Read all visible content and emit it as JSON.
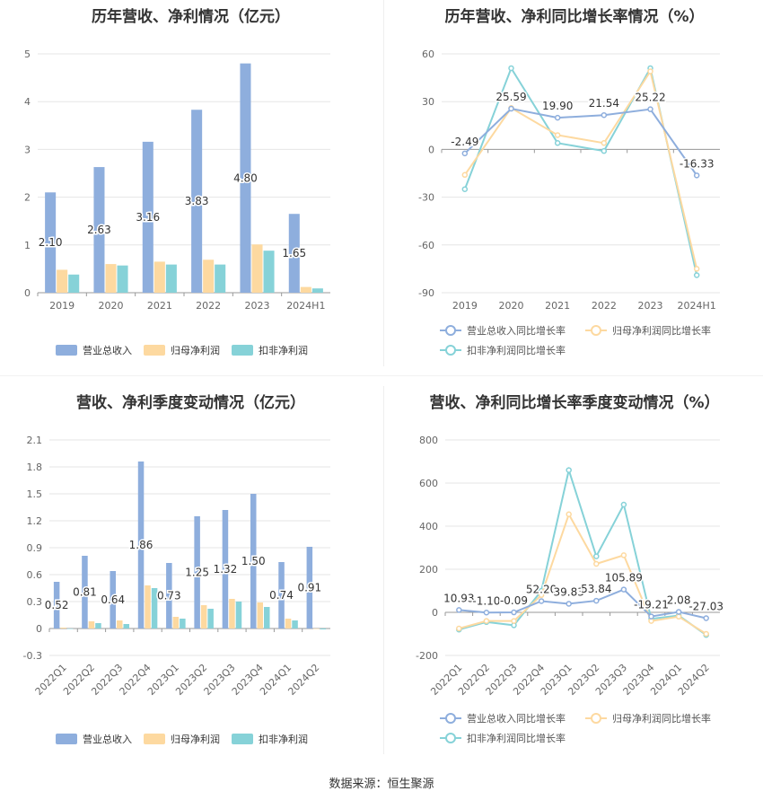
{
  "footer": {
    "source": "数据来源：恒生聚源"
  },
  "chart_data": [
    {
      "type": "bar",
      "title": "历年营收、净利情况（亿元）",
      "categories": [
        "2019",
        "2020",
        "2021",
        "2022",
        "2023",
        "2024H1"
      ],
      "ylim": [
        0,
        5
      ],
      "yticks": [
        0,
        1,
        2,
        3,
        4,
        5
      ],
      "grid": true,
      "legend_position": "bottom",
      "series": [
        {
          "name": "营业总收入",
          "color": "#8eaedd",
          "values": [
            2.1,
            2.63,
            3.16,
            3.83,
            4.8,
            1.65
          ],
          "labels": [
            "2.10",
            "2.63",
            "3.16",
            "3.83",
            "4.80",
            "1.65"
          ]
        },
        {
          "name": "归母净利润",
          "color": "#fdd9a0",
          "values": [
            0.48,
            0.6,
            0.65,
            0.69,
            1.01,
            0.12
          ]
        },
        {
          "name": "扣非净利润",
          "color": "#86d2d8",
          "values": [
            0.38,
            0.57,
            0.59,
            0.59,
            0.88,
            0.09
          ]
        }
      ]
    },
    {
      "type": "line",
      "title": "历年营收、净利同比增长率情况（%）",
      "categories": [
        "2019",
        "2020",
        "2021",
        "2022",
        "2023",
        "2024H1"
      ],
      "ylim": [
        -90,
        60
      ],
      "yticks": [
        -90,
        -60,
        -30,
        0,
        30,
        60
      ],
      "grid": true,
      "legend_position": "bottom",
      "series": [
        {
          "name": "营业总收入同比增长率",
          "color": "#8eaedd",
          "values": [
            -2.49,
            25.59,
            19.9,
            21.54,
            25.22,
            -16.33
          ],
          "labels": [
            "-2.49",
            "25.59",
            "19.90",
            "21.54",
            "25.22",
            "-16.33"
          ]
        },
        {
          "name": "归母净利润同比增长率",
          "color": "#fdd9a0",
          "values": [
            -16,
            26,
            9,
            4,
            49,
            -75
          ]
        },
        {
          "name": "扣非净利润同比增长率",
          "color": "#86d2d8",
          "values": [
            -25,
            51,
            4,
            -1,
            51,
            -79
          ]
        }
      ]
    },
    {
      "type": "bar",
      "title": "营收、净利季度变动情况（亿元）",
      "categories": [
        "2022Q1",
        "2022Q2",
        "2022Q3",
        "2022Q4",
        "2023Q1",
        "2023Q2",
        "2023Q3",
        "2023Q4",
        "2024Q1",
        "2024Q2"
      ],
      "ylim": [
        -0.3,
        2.1
      ],
      "yticks": [
        -0.3,
        0,
        0.3,
        0.6,
        0.9,
        1.2,
        1.5,
        1.8,
        2.1
      ],
      "grid": true,
      "legend_position": "bottom",
      "series": [
        {
          "name": "营业总收入",
          "color": "#8eaedd",
          "values": [
            0.52,
            0.81,
            0.64,
            1.86,
            0.73,
            1.25,
            1.32,
            1.5,
            0.74,
            0.91
          ],
          "labels": [
            "0.52",
            "0.81",
            "0.64",
            "1.86",
            "0.73",
            "1.25",
            "1.32",
            "1.50",
            "0.74",
            "0.91"
          ]
        },
        {
          "name": "归母净利润",
          "color": "#fdd9a0",
          "values": [
            0.01,
            0.08,
            0.09,
            0.48,
            0.13,
            0.26,
            0.33,
            0.29,
            0.11,
            0.0
          ]
        },
        {
          "name": "扣非净利润",
          "color": "#86d2d8",
          "values": [
            0.0,
            0.06,
            0.05,
            0.45,
            0.11,
            0.22,
            0.3,
            0.24,
            0.09,
            -0.01
          ]
        }
      ]
    },
    {
      "type": "line",
      "title": "营收、净利同比增长率季度变动情况（%）",
      "categories": [
        "2022Q1",
        "2022Q2",
        "2022Q3",
        "2022Q4",
        "2023Q1",
        "2023Q2",
        "2023Q3",
        "2023Q4",
        "2024Q1",
        "2024Q2"
      ],
      "ylim": [
        -200,
        800
      ],
      "yticks": [
        -200,
        0,
        200,
        400,
        600,
        800
      ],
      "grid": true,
      "legend_position": "bottom",
      "series": [
        {
          "name": "营业总收入同比增长率",
          "color": "#8eaedd",
          "values": [
            10.93,
            -1.1,
            -0.09,
            52.2,
            39.83,
            53.84,
            105.89,
            -19.21,
            2.08,
            -27.03
          ],
          "labels": [
            "10.93",
            "-1.10",
            "-0.09",
            "52.20",
            "39.83",
            "53.84",
            "105.89",
            "-19.21",
            "2.08",
            "-27.03"
          ]
        },
        {
          "name": "归母净利润同比增长率",
          "color": "#fdd9a0",
          "values": [
            -75,
            -40,
            -40,
            80,
            455,
            225,
            265,
            -40,
            -20,
            -100
          ]
        },
        {
          "name": "扣非净利润同比增长率",
          "color": "#86d2d8",
          "values": [
            -80,
            -45,
            -60,
            100,
            660,
            260,
            500,
            -30,
            -15,
            -105
          ]
        }
      ]
    }
  ]
}
